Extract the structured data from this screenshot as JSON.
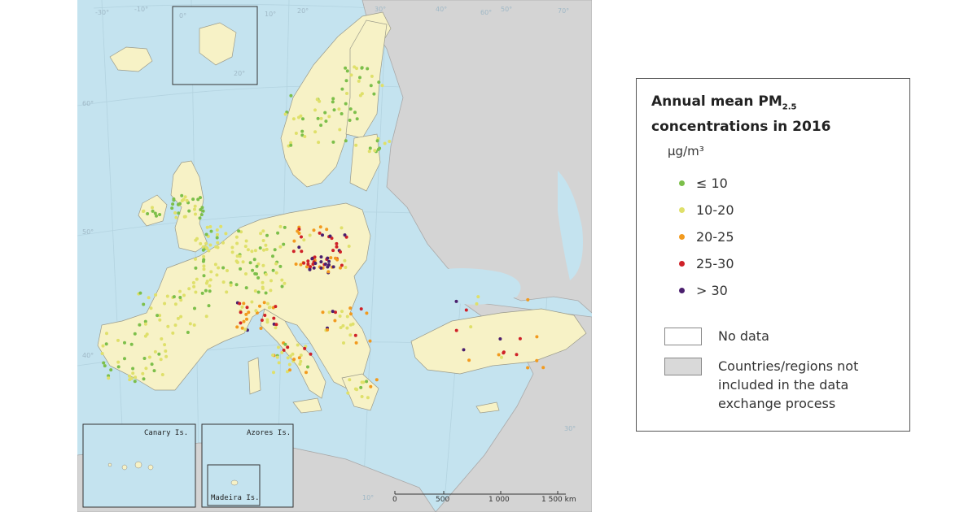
{
  "legend": {
    "title_line1_prefix": "Annual mean PM",
    "title_subscript": "2.5",
    "title_line2": "concentrations in 2016",
    "unit": "µg/m³",
    "classes": [
      {
        "label": "≤ 10",
        "color": "#7cbf4a"
      },
      {
        "label": "10-20",
        "color": "#dfe06a"
      },
      {
        "label": "20-25",
        "color": "#f29a1e"
      },
      {
        "label": "25-30",
        "color": "#cf2128"
      },
      {
        "label": "> 30",
        "color": "#4b1f6e"
      }
    ],
    "no_data_label": "No data",
    "no_data_color": "#ffffff",
    "not_included_label": "Countries/regions not included in the data exchange process",
    "not_included_color": "#d9d9d9"
  },
  "map": {
    "sea_color": "#c4e3ef",
    "land_color": "#f7f2c6",
    "other_land_color": "#d4d4d4",
    "grid_labels": [
      "-30°",
      "-10°",
      "0°",
      "10°",
      "20°",
      "30°",
      "40°",
      "50°",
      "60°",
      "70°",
      "60°",
      "50°",
      "40°",
      "30°",
      "10°",
      "20°"
    ],
    "insets": {
      "canary": "Canary Is.",
      "azores": "Azores Is.",
      "madeira": "Madeira Is."
    },
    "scale": {
      "ticks": [
        "0",
        "500",
        "1 000",
        "1 500 km"
      ]
    }
  }
}
